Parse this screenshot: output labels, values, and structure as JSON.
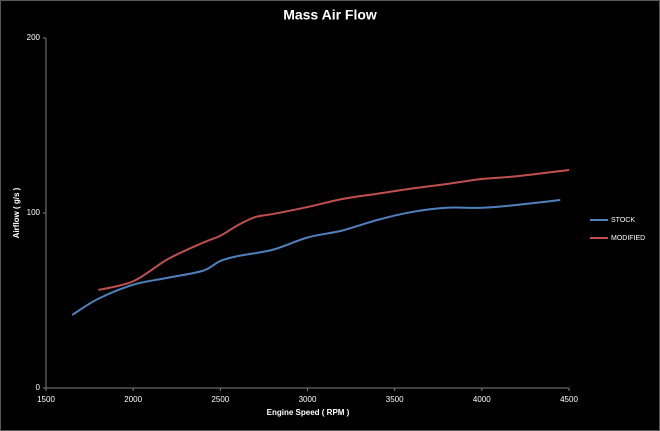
{
  "chart_data": {
    "type": "line",
    "title": "Mass Air Flow",
    "x_label": "Engine Speed ( RPM )",
    "y_label": "Airflow ( g/s )",
    "series": [
      {
        "name": "STOCK",
        "color": "#4f81bd",
        "x": [
          1650,
          1800,
          2000,
          2200,
          2400,
          2500,
          2600,
          2800,
          3000,
          3200,
          3400,
          3600,
          3800,
          4000,
          4200,
          4450
        ],
        "values": [
          41.7,
          51,
          59,
          63,
          67,
          72.6,
          75.4,
          79,
          86,
          90,
          96,
          100.6,
          103,
          103,
          104.6,
          107.4
        ]
      },
      {
        "name": "MODIFIED",
        "color": "#c0504d",
        "x": [
          1800,
          2000,
          2200,
          2400,
          2500,
          2600,
          2700,
          2800,
          3000,
          3200,
          3400,
          3600,
          3800,
          4000,
          4200,
          4500
        ],
        "values": [
          56,
          61,
          73.7,
          83,
          87,
          93,
          97.7,
          99.4,
          103.4,
          108,
          111,
          114,
          116.6,
          119.4,
          121,
          124.6
        ]
      }
    ],
    "xlim": [
      1500,
      4500
    ],
    "xticks": [
      1500,
      2000,
      2500,
      3000,
      3500,
      4000,
      4500
    ],
    "ylim": [
      0,
      200
    ],
    "yticks": [
      0,
      100,
      200
    ],
    "legend": "right"
  }
}
